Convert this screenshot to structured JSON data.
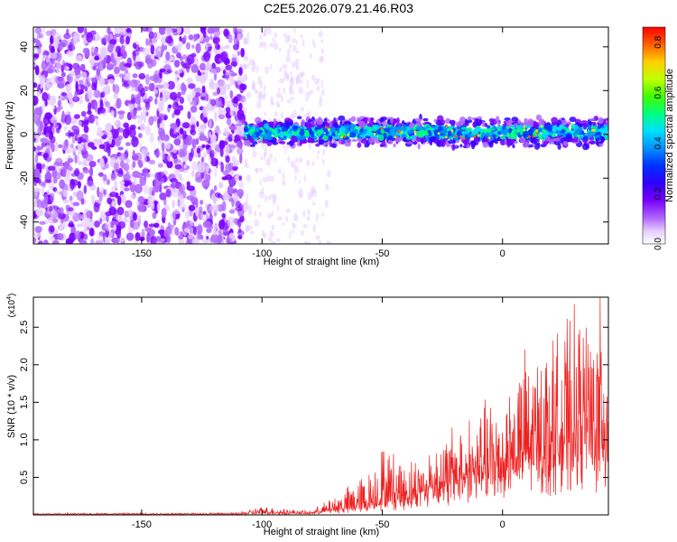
{
  "title": "C2E5.2026.079.21.46.R03",
  "chart_data": [
    {
      "type": "heatmap",
      "xlabel": "Height of straight line (km)",
      "ylabel": "Frequency (Hz)",
      "xlim": [
        -195,
        44
      ],
      "ylim": [
        -50,
        49
      ],
      "xticks": [
        -150,
        -100,
        -50,
        0
      ],
      "yticks": [
        -40,
        -20,
        0,
        20,
        40
      ],
      "colorbar": {
        "label": "Normalized spectral amplitude",
        "range": [
          0.0,
          0.86
        ],
        "ticks": [
          0.0,
          0.2,
          0.4,
          0.6,
          0.8
        ],
        "colormap": [
          "#ffffff",
          "#e6ccff",
          "#b066ff",
          "#7a00ff",
          "#3000ff",
          "#0030ff",
          "#0090ff",
          "#00e0ff",
          "#00ff80",
          "#40ff00",
          "#c0ff00",
          "#ffd000",
          "#ff6000",
          "#ff0000"
        ]
      },
      "features": {
        "noise_region_km": [
          -195,
          -107
        ],
        "signal_start_km": -107,
        "signal_band_hz": [
          -6,
          8
        ],
        "signal_center_hz": 1
      }
    },
    {
      "type": "line",
      "xlabel": "Height of straight line (km)",
      "ylabel": "SNR (10 * v/v)",
      "exponent_label": "(x10",
      "exponent_sup": "4",
      "exponent_close": ")",
      "xlim": [
        -195,
        44
      ],
      "ylim": [
        0,
        2.9
      ],
      "xticks": [
        -150,
        -100,
        -50,
        0
      ],
      "yticks": [
        0.5,
        1.0,
        1.5,
        2.0,
        2.5
      ],
      "ytick_labels": [
        "0.5",
        "1.0",
        "1.5",
        "2.0",
        "2.5"
      ],
      "color": "#ee2020",
      "envelope": [
        {
          "x": -195,
          "base": 0.01,
          "peak": 0.02
        },
        {
          "x": -110,
          "base": 0.01,
          "peak": 0.03
        },
        {
          "x": -100,
          "base": 0.02,
          "peak": 0.12
        },
        {
          "x": -80,
          "base": 0.02,
          "peak": 0.05
        },
        {
          "x": -70,
          "base": 0.05,
          "peak": 0.25
        },
        {
          "x": -55,
          "base": 0.1,
          "peak": 0.6
        },
        {
          "x": -50,
          "base": 0.15,
          "peak": 1.0
        },
        {
          "x": -40,
          "base": 0.2,
          "peak": 0.7
        },
        {
          "x": -30,
          "base": 0.3,
          "peak": 0.9
        },
        {
          "x": -20,
          "base": 0.4,
          "peak": 1.2
        },
        {
          "x": -10,
          "base": 0.5,
          "peak": 1.4
        },
        {
          "x": 0,
          "base": 0.6,
          "peak": 1.7
        },
        {
          "x": 10,
          "base": 0.7,
          "peak": 2.2
        },
        {
          "x": 20,
          "base": 0.8,
          "peak": 2.3
        },
        {
          "x": 30,
          "base": 0.9,
          "peak": 2.6
        },
        {
          "x": 44,
          "base": 1.0,
          "peak": 2.9
        }
      ]
    }
  ]
}
